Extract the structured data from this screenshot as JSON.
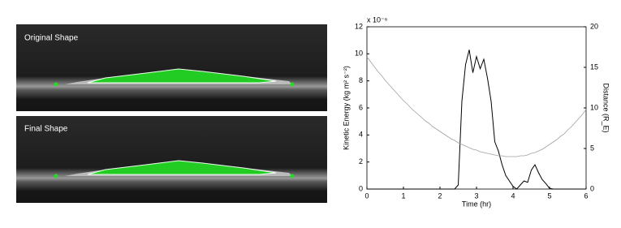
{
  "panels": {
    "top_label": "Original Shape",
    "bottom_label": "Final Shape"
  },
  "chart_data": {
    "type": "line",
    "xlabel": "Time (hr)",
    "ylabel": "Kinetic Energy (kg m² s⁻²)",
    "y2label": "Distance (R_E)",
    "y_multiplier": "x 10⁻⁶",
    "x": [
      0,
      0.1,
      0.2,
      0.3,
      0.4,
      0.5,
      0.6,
      0.7,
      0.8,
      0.9,
      1,
      1.1,
      1.2,
      1.3,
      1.4,
      1.5,
      1.6,
      1.7,
      1.8,
      1.9,
      2,
      2.1,
      2.2,
      2.3,
      2.4,
      2.5,
      2.6,
      2.7,
      2.8,
      2.9,
      3,
      3.1,
      3.2,
      3.3,
      3.4,
      3.5,
      3.6,
      3.7,
      3.8,
      3.9,
      4,
      4.1,
      4.2,
      4.3,
      4.4,
      4.5,
      4.6,
      4.7,
      4.8,
      4.9,
      5,
      5.1,
      5.2,
      5.3,
      5.4,
      5.5,
      5.6,
      5.7,
      5.8,
      5.9,
      6
    ],
    "series": [
      {
        "color": "#000000",
        "values": [
          0,
          0,
          0,
          0,
          0,
          0,
          0,
          0,
          0,
          0,
          0,
          0,
          0,
          0,
          0,
          0,
          0,
          0,
          0,
          0,
          0,
          0,
          0,
          0,
          0,
          0.3,
          6.5,
          9.2,
          10.3,
          8.6,
          9.8,
          8.9,
          9.6,
          8.2,
          6.5,
          3.5,
          2.8,
          1.8,
          1.0,
          0.6,
          0.2,
          0,
          0.3,
          0.6,
          0.5,
          1.4,
          1.8,
          1.2,
          0.7,
          0.4,
          0.05,
          0,
          0,
          0,
          0,
          0,
          0,
          0,
          0,
          0,
          0
        ]
      },
      {
        "color": "#a0a0a0",
        "axis": "y2",
        "values": [
          16.3,
          15.7,
          15.1,
          14.5,
          14.0,
          13.4,
          12.9,
          12.4,
          11.9,
          11.4,
          10.9,
          10.5,
          10.0,
          9.6,
          9.2,
          8.8,
          8.4,
          8.1,
          7.7,
          7.4,
          7.1,
          6.8,
          6.5,
          6.2,
          6.0,
          5.7,
          5.5,
          5.3,
          5.1,
          4.9,
          4.8,
          4.6,
          4.5,
          4.4,
          4.3,
          4.2,
          4.1,
          4.1,
          4.0,
          4.0,
          4.0,
          4.0,
          4.1,
          4.1,
          4.2,
          4.4,
          4.5,
          4.7,
          4.9,
          5.2,
          5.5,
          5.8,
          6.1,
          6.5,
          6.8,
          7.3,
          7.7,
          8.2,
          8.7,
          9.2,
          9.8
        ]
      }
    ],
    "xlim": [
      0,
      6
    ],
    "xticks": [
      0,
      1,
      2,
      3,
      4,
      5,
      6
    ],
    "ylim": [
      0,
      12
    ],
    "yticks": [
      0,
      2,
      4,
      6,
      8,
      10,
      12
    ],
    "y2lim": [
      0,
      20
    ],
    "y2ticks": [
      0,
      5,
      10,
      15,
      20
    ]
  }
}
